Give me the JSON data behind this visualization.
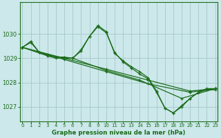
{
  "title": "Graphe pression niveau de la mer (hPa)",
  "bg_color": "#cce8ea",
  "grid_color": "#aacccc",
  "line_color": "#1a6b1a",
  "ylim": [
    1026.4,
    1031.3
  ],
  "xlim": [
    -0.3,
    23.3
  ],
  "yticks": [
    1027,
    1028,
    1029,
    1030
  ],
  "xticks": [
    0,
    1,
    2,
    3,
    4,
    5,
    6,
    7,
    8,
    9,
    10,
    11,
    12,
    13,
    14,
    15,
    16,
    17,
    18,
    19,
    20,
    21,
    22,
    23
  ],
  "lines": [
    {
      "x": [
        0,
        1,
        2,
        3,
        4,
        5,
        6,
        7,
        8,
        9,
        10,
        11,
        12,
        13,
        14,
        15,
        16,
        17,
        18,
        19,
        20,
        21,
        22,
        23
      ],
      "y": [
        1029.45,
        1029.65,
        1029.25,
        1029.15,
        1029.05,
        1029.05,
        1029.0,
        1029.35,
        1029.9,
        1030.35,
        1030.1,
        1029.2,
        1028.9,
        1028.65,
        1028.45,
        1028.2,
        1027.65,
        1026.95,
        1026.75,
        1027.05,
        1027.35,
        1027.6,
        1027.75,
        1027.75
      ]
    },
    {
      "x": [
        0,
        1,
        2,
        3,
        4,
        5,
        6,
        7,
        8,
        9,
        10,
        11,
        12,
        13,
        14,
        15,
        16,
        17,
        18,
        19,
        20,
        21,
        22,
        23
      ],
      "y": [
        1029.45,
        1029.7,
        1029.25,
        1029.1,
        1029.0,
        1029.0,
        1029.0,
        1029.3,
        1029.9,
        1030.3,
        1030.05,
        1029.25,
        1028.85,
        1028.6,
        1028.35,
        1028.15,
        1027.6,
        1026.95,
        1026.75,
        1027.0,
        1027.35,
        1027.6,
        1027.7,
        1027.7
      ]
    },
    {
      "x": [
        0,
        5,
        10,
        15,
        20,
        23
      ],
      "y": [
        1029.45,
        1028.95,
        1028.45,
        1027.95,
        1027.6,
        1027.75
      ]
    },
    {
      "x": [
        0,
        5,
        10,
        15,
        20,
        23
      ],
      "y": [
        1029.45,
        1029.0,
        1028.55,
        1028.1,
        1027.65,
        1027.75
      ]
    },
    {
      "x": [
        0,
        3,
        6,
        10,
        14,
        19,
        23
      ],
      "y": [
        1029.45,
        1029.1,
        1029.0,
        1028.5,
        1028.1,
        1027.35,
        1027.75
      ]
    }
  ]
}
